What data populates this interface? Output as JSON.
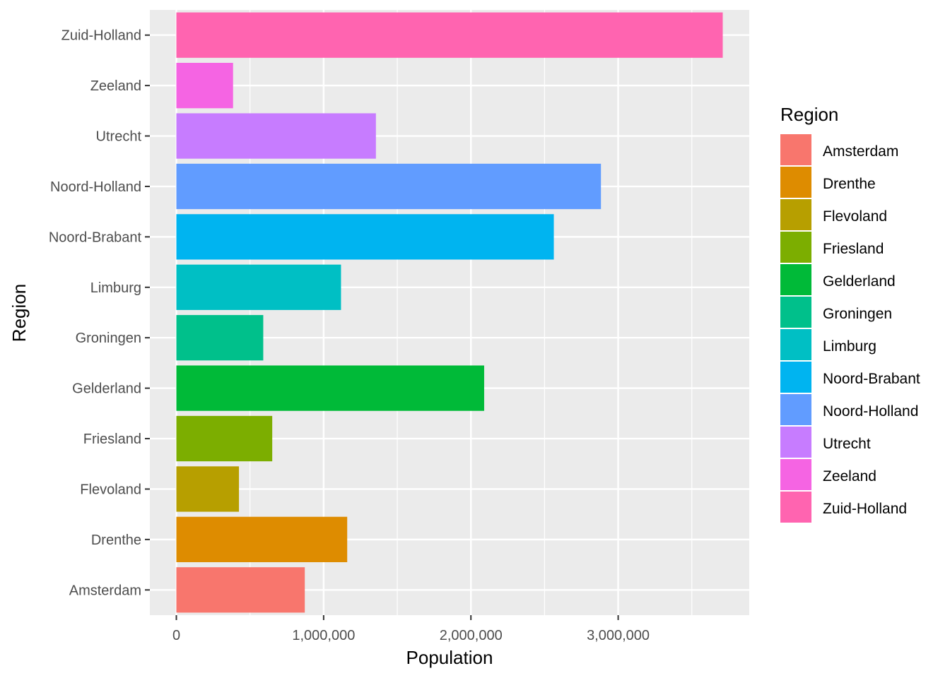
{
  "chart_data": {
    "type": "bar",
    "orientation": "horizontal",
    "xlabel": "Population",
    "ylabel": "Region",
    "xlim": [
      -180000,
      3890000
    ],
    "x_ticks": [
      0,
      1000000,
      2000000,
      3000000
    ],
    "x_tick_labels": [
      "0",
      "1,000,000",
      "2,000,000",
      "3,000,000"
    ],
    "grid": true,
    "legend": {
      "title": "Region",
      "placement": "right"
    },
    "categories": [
      "Amsterdam",
      "Drenthe",
      "Flevoland",
      "Friesland",
      "Gelderland",
      "Groningen",
      "Limburg",
      "Noord-Brabant",
      "Noord-Holland",
      "Utrecht",
      "Zeeland",
      "Zuid-Holland"
    ],
    "values": [
      872000,
      1160000,
      425000,
      651000,
      2090000,
      590000,
      1118000,
      2563000,
      2883000,
      1355000,
      385000,
      3710000
    ],
    "colors": [
      "#F8766D",
      "#DE8C00",
      "#B79F00",
      "#7CAE00",
      "#00BA38",
      "#00C08B",
      "#00BFC4",
      "#00B4F0",
      "#619CFF",
      "#C77CFF",
      "#F564E3",
      "#FF64B0"
    ]
  }
}
